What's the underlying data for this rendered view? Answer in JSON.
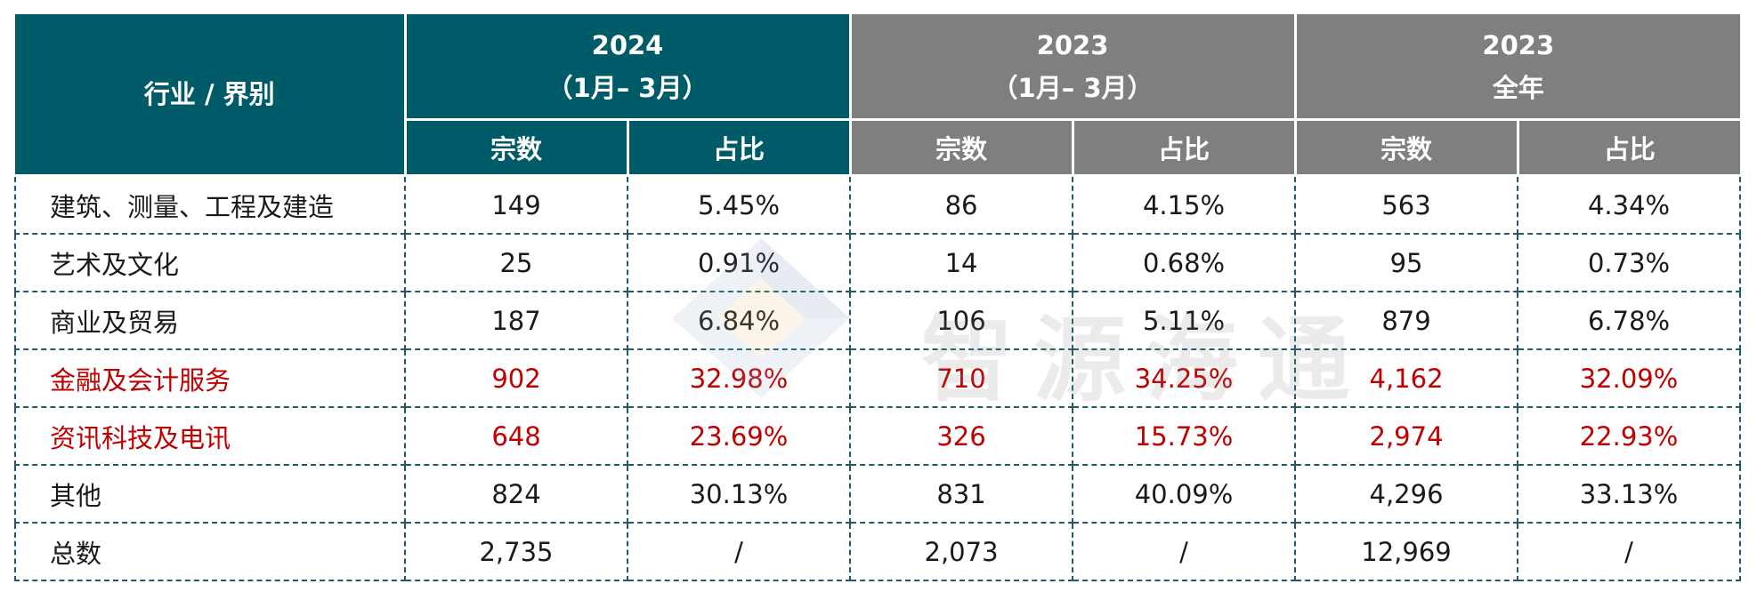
{
  "header": {
    "industry": "行业 / 界别",
    "groups": [
      {
        "line1": "2024",
        "line2": "（1月– 3月）"
      },
      {
        "line1": "2023",
        "line2": "（1月– 3月）"
      },
      {
        "line1": "2023",
        "line2": "全年"
      }
    ],
    "sub": [
      "宗数",
      "占比",
      "宗数",
      "占比",
      "宗数",
      "占比"
    ]
  },
  "rows": [
    {
      "name": "建筑、测量、工程及建造",
      "cells": [
        "149",
        "5.45%",
        "86",
        "4.15%",
        "563",
        "4.34%"
      ]
    },
    {
      "name": "艺术及文化",
      "cells": [
        "25",
        "0.91%",
        "14",
        "0.68%",
        "95",
        "0.73%"
      ]
    },
    {
      "name": "商业及贸易",
      "cells": [
        "187",
        "6.84%",
        "106",
        "5.11%",
        "879",
        "6.78%"
      ]
    },
    {
      "name": "金融及会计服务",
      "cells": [
        "902",
        "32.98%",
        "710",
        "34.25%",
        "4,162",
        "32.09%"
      ]
    },
    {
      "name": "资讯科技及电讯",
      "cells": [
        "648",
        "23.69%",
        "326",
        "15.73%",
        "2,974",
        "22.93%"
      ]
    },
    {
      "name": "其他",
      "cells": [
        "824",
        "30.13%",
        "831",
        "40.09%",
        "4,296",
        "33.13%"
      ]
    },
    {
      "name": "总数",
      "cells": [
        "2,735",
        "/",
        "2,073",
        "/",
        "12,969",
        "/"
      ]
    }
  ],
  "highlight_color": "#c00000",
  "header_colors": {
    "teal": "#005b69",
    "gray": "#7f7f7f"
  },
  "watermark": {
    "text": "智源海通"
  }
}
